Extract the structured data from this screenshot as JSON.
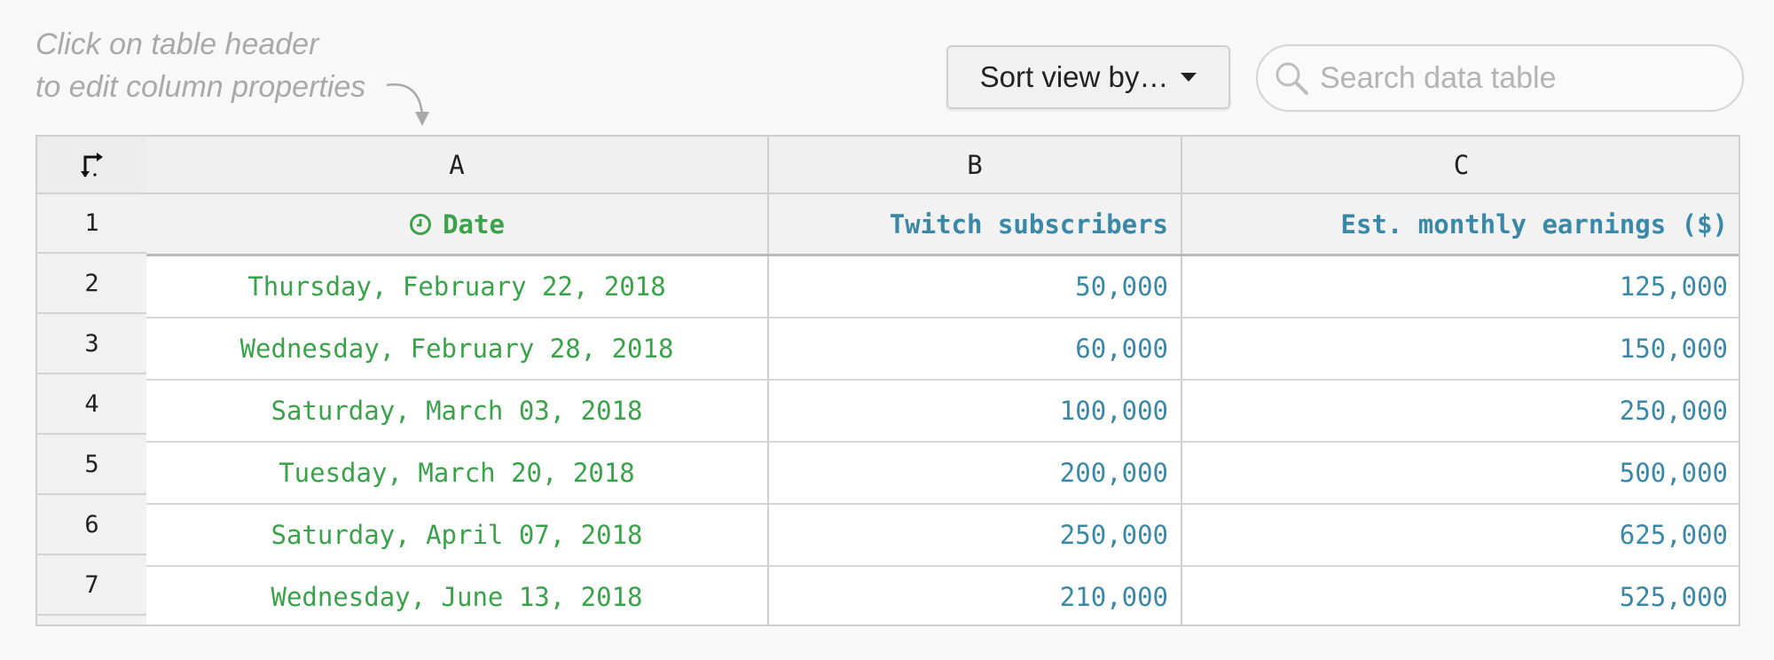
{
  "hint": {
    "line1": "Click on table header",
    "line2": "to edit column properties"
  },
  "toolbar": {
    "sort_label": "Sort view by…",
    "search_placeholder": "Search data table"
  },
  "icons": {
    "corner": "transpose-icon",
    "search": "search-icon",
    "date_type": "clock-icon",
    "sort_caret": "caret-down-icon"
  },
  "colors": {
    "date": "#3aa34a",
    "number": "#3a88a8"
  },
  "table": {
    "column_letters": [
      "A",
      "B",
      "C"
    ],
    "row_numbers": [
      "1",
      "2",
      "3",
      "4",
      "5",
      "6",
      "7"
    ],
    "fields": [
      "Date",
      "Twitch subscribers",
      "Est. monthly earnings ($)"
    ],
    "rows": [
      [
        "Thursday, February 22, 2018",
        "50,000",
        "125,000"
      ],
      [
        "Wednesday, February 28, 2018",
        "60,000",
        "150,000"
      ],
      [
        "Saturday, March 03, 2018",
        "100,000",
        "250,000"
      ],
      [
        "Tuesday, March 20, 2018",
        "200,000",
        "500,000"
      ],
      [
        "Saturday, April 07, 2018",
        "250,000",
        "625,000"
      ],
      [
        "Wednesday, June 13, 2018",
        "210,000",
        "525,000"
      ]
    ]
  }
}
